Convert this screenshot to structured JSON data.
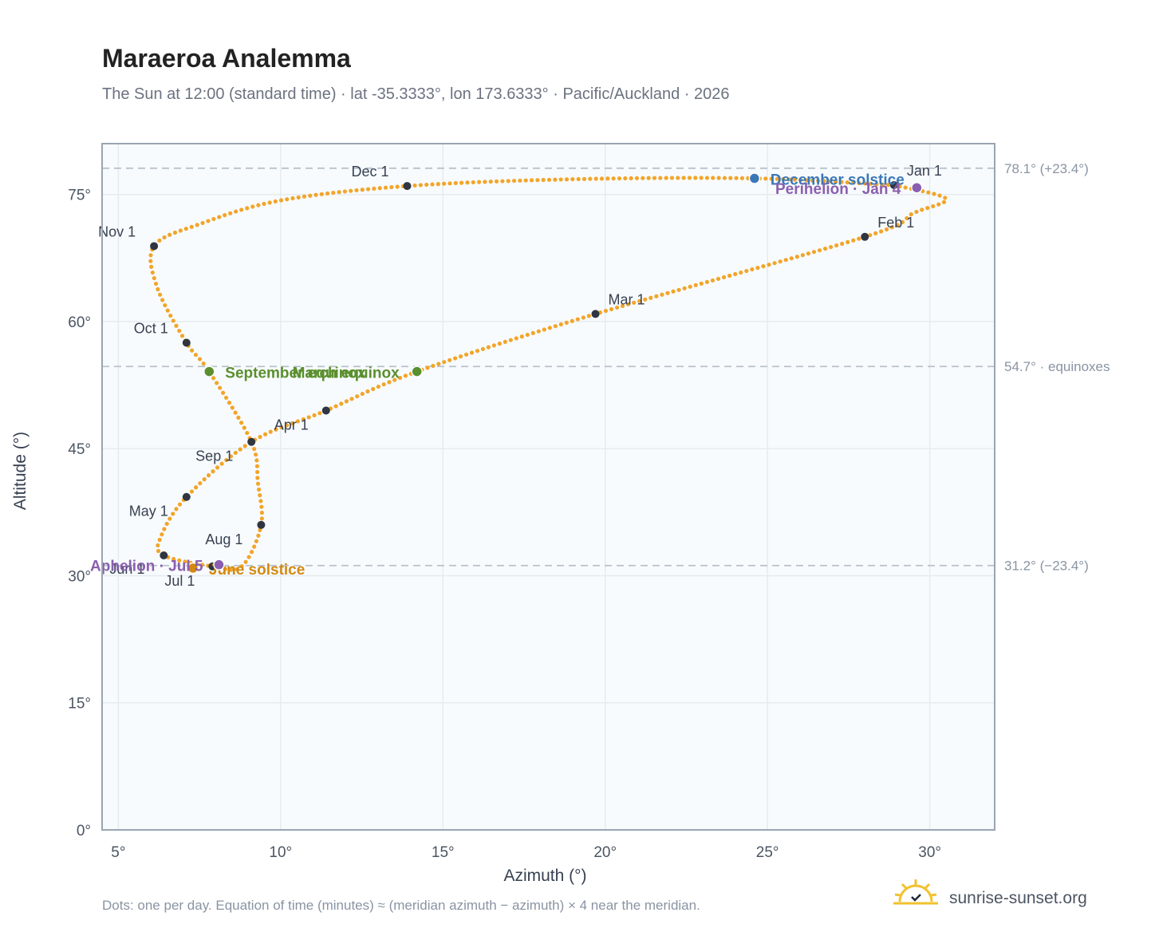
{
  "header": {
    "title": "Maraeroa Analemma",
    "subtitle": "The Sun at 12:00 (standard time) · lat -35.3333°, lon 173.6333° · Pacific/Auckland · 2026"
  },
  "footer": {
    "note": "Dots: one per day. Equation of time (minutes) ≈ (meridian azimuth − azimuth) × 4 near the meridian.",
    "brand": "sunrise-sunset.org"
  },
  "colors": {
    "curve": "#f2a52a",
    "month_dot": "#2f3640",
    "equinox": "#5a8f2e",
    "solstice_december": "#3a78b8",
    "solstice_june": "#d48a12",
    "apsis": "#8a5fb0",
    "plot_bg": "#f8fbfd",
    "grid": "#e5ebf0",
    "reference_line": "#b8c2cc",
    "frame": "#9aa5b1"
  },
  "chart_data": {
    "type": "scatter",
    "xlabel": "Azimuth (°)",
    "ylabel": "Altitude (°)",
    "xlim": [
      4.5,
      32
    ],
    "ylim": [
      0,
      81
    ],
    "x_ticks": [
      5,
      10,
      15,
      20,
      25,
      30
    ],
    "y_ticks": [
      0,
      15,
      30,
      45,
      60,
      75
    ],
    "x_tick_labels": [
      "5°",
      "10°",
      "15°",
      "20°",
      "25°",
      "30°"
    ],
    "y_tick_labels": [
      "0°",
      "15°",
      "30°",
      "45°",
      "60°",
      "75°"
    ],
    "grid": true,
    "reference_lines": [
      {
        "y": 78.1,
        "label": "78.1° (+23.4°)"
      },
      {
        "y": 54.7,
        "label": "54.7° · equinoxes"
      },
      {
        "y": 31.2,
        "label": "31.2° (−23.4°)"
      }
    ],
    "curve_points": [
      [
        28.9,
        76.1
      ],
      [
        30.5,
        74.5
      ],
      [
        29.5,
        72.8
      ],
      [
        28.0,
        70.0
      ],
      [
        19.7,
        60.9
      ],
      [
        14.2,
        54.1
      ],
      [
        11.4,
        49.5
      ],
      [
        9.1,
        45.8
      ],
      [
        7.1,
        39.3
      ],
      [
        6.3,
        34.5
      ],
      [
        6.4,
        32.4
      ],
      [
        7.9,
        31.1
      ],
      [
        8.8,
        31.1
      ],
      [
        9.4,
        36.0
      ],
      [
        9.3,
        41.0
      ],
      [
        9.1,
        45.8
      ],
      [
        7.8,
        54.1
      ],
      [
        7.1,
        57.5
      ],
      [
        6.2,
        64.0
      ],
      [
        6.1,
        68.9
      ],
      [
        7.5,
        71.5
      ],
      [
        10.0,
        74.3
      ],
      [
        13.9,
        76.0
      ],
      [
        19.0,
        76.8
      ],
      [
        24.6,
        76.9
      ],
      [
        28.9,
        76.1
      ]
    ],
    "month_markers": [
      {
        "label": "Jan 1",
        "x": 28.9,
        "y": 76.1
      },
      {
        "label": "Feb 1",
        "x": 28.0,
        "y": 70.0
      },
      {
        "label": "Mar 1",
        "x": 19.7,
        "y": 60.9
      },
      {
        "label": "Apr 1",
        "x": 11.4,
        "y": 49.5
      },
      {
        "label": "May 1",
        "x": 7.1,
        "y": 39.3
      },
      {
        "label": "Jun 1",
        "x": 6.4,
        "y": 32.4
      },
      {
        "label": "Jul 1",
        "x": 7.9,
        "y": 31.1
      },
      {
        "label": "Aug 1",
        "x": 9.4,
        "y": 36.0
      },
      {
        "label": "Sep 1",
        "x": 9.1,
        "y": 45.8
      },
      {
        "label": "Oct 1",
        "x": 7.1,
        "y": 57.5
      },
      {
        "label": "Nov 1",
        "x": 6.1,
        "y": 68.9
      },
      {
        "label": "Dec 1",
        "x": 13.9,
        "y": 76.0
      }
    ],
    "events": [
      {
        "label": "December solstice",
        "x": 24.6,
        "y": 76.9,
        "kind": "solstice_december"
      },
      {
        "label": "Perihelion · Jan 4",
        "x": 29.6,
        "y": 75.8,
        "kind": "apsis"
      },
      {
        "label": "March equinox",
        "x": 14.2,
        "y": 54.1,
        "kind": "equinox"
      },
      {
        "label": "September equinox",
        "x": 7.8,
        "y": 54.1,
        "kind": "equinox"
      },
      {
        "label": "June solstice",
        "x": 7.3,
        "y": 30.9,
        "kind": "solstice_june"
      },
      {
        "label": "Aphelion · Jul 5",
        "x": 8.1,
        "y": 31.3,
        "kind": "apsis"
      }
    ]
  }
}
